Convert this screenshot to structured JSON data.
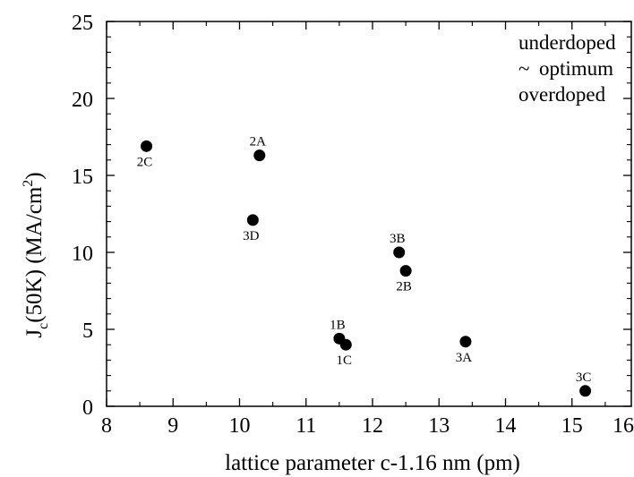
{
  "chart_data": {
    "type": "scatter",
    "title": "",
    "xlabel": "lattice parameter c-1.16 nm (pm)",
    "ylabel": {
      "main": "J",
      "sub": "c",
      "rest": "(50K) (MA/cm",
      "sup": "2",
      "end": ")"
    },
    "xlim": [
      8,
      16
    ],
    "ylim": [
      0,
      25
    ],
    "xticks": [
      8,
      9,
      10,
      11,
      12,
      13,
      14,
      15,
      16
    ],
    "yticks": [
      0,
      5,
      10,
      15,
      20,
      25
    ],
    "grid": false,
    "legend_position": "top-right",
    "legend": [
      {
        "prefix": "",
        "text": "underdoped"
      },
      {
        "prefix": "~",
        "text": "optimum"
      },
      {
        "prefix": "",
        "text": "overdoped"
      }
    ],
    "marker_color": "#000000",
    "points": [
      {
        "label": "2C",
        "x": 8.6,
        "y": 16.9,
        "label_pos": "below"
      },
      {
        "label": "2A",
        "x": 10.3,
        "y": 16.3,
        "label_pos": "above"
      },
      {
        "label": "3D",
        "x": 10.2,
        "y": 12.1,
        "label_pos": "below"
      },
      {
        "label": "3B",
        "x": 12.4,
        "y": 10.0,
        "label_pos": "above"
      },
      {
        "label": "2B",
        "x": 12.5,
        "y": 8.8,
        "label_pos": "below"
      },
      {
        "label": "1B",
        "x": 11.5,
        "y": 4.4,
        "label_pos": "above"
      },
      {
        "label": "1C",
        "x": 11.6,
        "y": 4.0,
        "label_pos": "below"
      },
      {
        "label": "3A",
        "x": 13.4,
        "y": 4.2,
        "label_pos": "below"
      },
      {
        "label": "3C",
        "x": 15.2,
        "y": 1.0,
        "label_pos": "above"
      }
    ]
  }
}
